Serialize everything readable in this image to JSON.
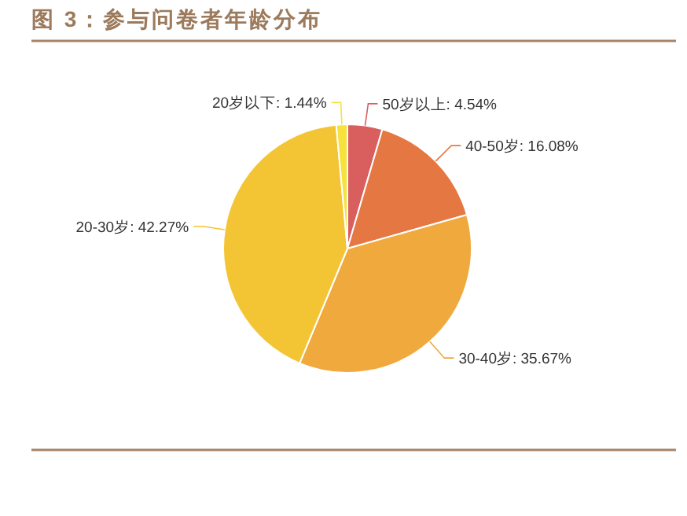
{
  "chart_data": {
    "type": "pie",
    "title": "图 3：参与问卷者年龄分布",
    "categories": [
      "50岁以上",
      "40-50岁",
      "30-40岁",
      "20-30岁",
      "20岁以下"
    ],
    "values": [
      4.54,
      16.08,
      35.67,
      42.27,
      1.44
    ],
    "value_labels": [
      "4.54%",
      "16.08%",
      "35.67%",
      "42.27%",
      "1.44%"
    ],
    "colors": [
      "#d95f5f",
      "#e57842",
      "#f0a93c",
      "#f3c535",
      "#f6e23a"
    ],
    "legend": false
  }
}
